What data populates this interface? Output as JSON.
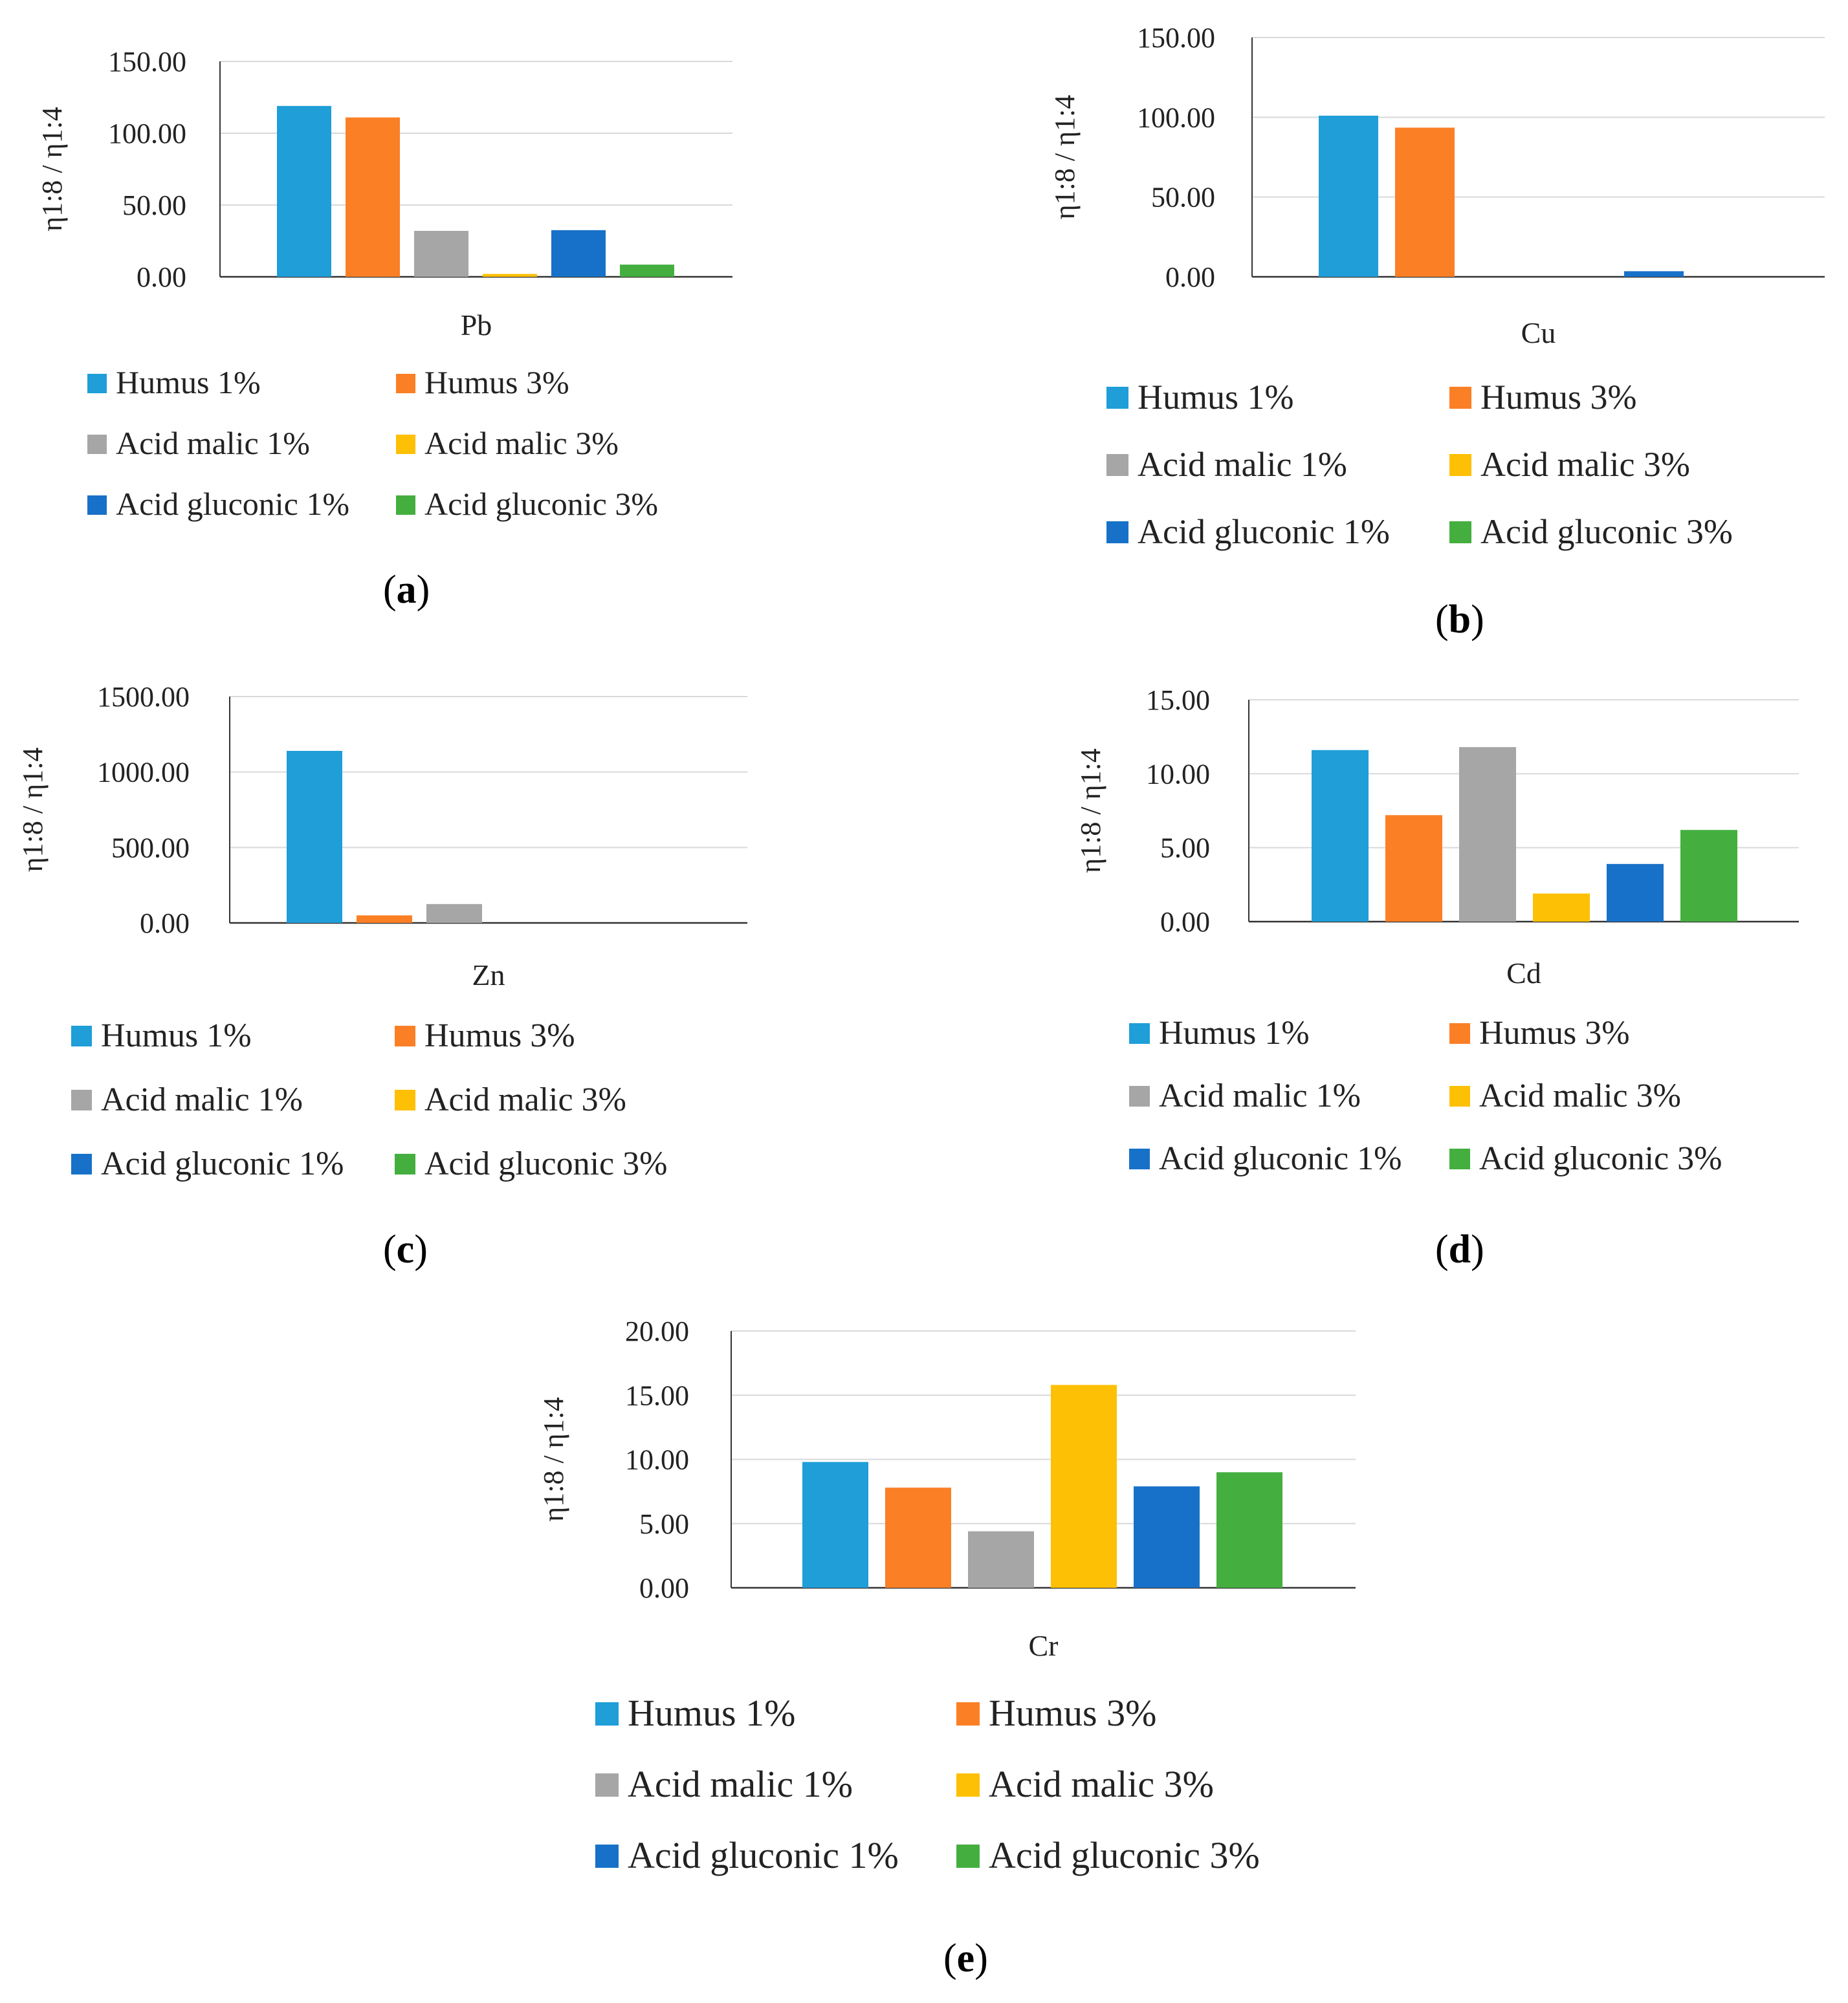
{
  "colors": {
    "humus_1": "#1f9ed8",
    "humus_3": "#fb7f25",
    "malic_1": "#a6a6a6",
    "malic_3": "#fec004",
    "gluconic_1": "#1871c8",
    "gluconic_3": "#44af3f",
    "grid": "#d9d9d9",
    "axis": "#333333"
  },
  "legend_labels": [
    "Humus 1%",
    "Humus 3%",
    "Acid malic 1%",
    "Acid malic 3%",
    "Acid gluconic 1%",
    "Acid gluconic 3%"
  ],
  "chart_data": [
    {
      "type": "bar",
      "panel": "a",
      "title": "",
      "category": "Pb",
      "xlabel": "Pb",
      "ylabel": "η1:8 / η1:4",
      "ylim": [
        0,
        150
      ],
      "yticks": [
        "0.00",
        "50.00",
        "100.00",
        "150.00"
      ],
      "series": [
        {
          "name": "Humus 1%",
          "value": 119
        },
        {
          "name": "Humus 3%",
          "value": 111
        },
        {
          "name": "Acid malic 1%",
          "value": 32
        },
        {
          "name": "Acid malic 3%",
          "value": 2
        },
        {
          "name": "Acid gluconic 1%",
          "value": 32.5
        },
        {
          "name": "Acid gluconic 3%",
          "value": 8.5
        }
      ]
    },
    {
      "type": "bar",
      "panel": "b",
      "title": "",
      "category": "Cu",
      "xlabel": "Cu",
      "ylabel": "η1:8 / η1:4",
      "ylim": [
        0,
        150
      ],
      "yticks": [
        "0.00",
        "50.00",
        "100.00",
        "150.00"
      ],
      "series": [
        {
          "name": "Humus 1%",
          "value": 101
        },
        {
          "name": "Humus 3%",
          "value": 93.5
        },
        {
          "name": "Acid malic 1%",
          "value": 0
        },
        {
          "name": "Acid malic 3%",
          "value": 0
        },
        {
          "name": "Acid gluconic 1%",
          "value": 3.5
        },
        {
          "name": "Acid gluconic 3%",
          "value": 0
        }
      ]
    },
    {
      "type": "bar",
      "panel": "c",
      "title": "",
      "category": "Zn",
      "xlabel": "Zn",
      "ylabel": "η1:8 / η1:4",
      "ylim": [
        0,
        1500
      ],
      "yticks": [
        "0.00",
        "500.00",
        "1000.00",
        "1500.00"
      ],
      "series": [
        {
          "name": "Humus 1%",
          "value": 1140
        },
        {
          "name": "Humus 3%",
          "value": 50
        },
        {
          "name": "Acid malic 1%",
          "value": 125
        },
        {
          "name": "Acid malic 3%",
          "value": 0
        },
        {
          "name": "Acid gluconic 1%",
          "value": 0
        },
        {
          "name": "Acid gluconic 3%",
          "value": 0
        }
      ]
    },
    {
      "type": "bar",
      "panel": "d",
      "title": "",
      "category": "Cd",
      "xlabel": "Cd",
      "ylabel": "η1:8 / η1:4",
      "ylim": [
        0,
        15
      ],
      "yticks": [
        "0.00",
        "5.00",
        "10.00",
        "15.00"
      ],
      "series": [
        {
          "name": "Humus 1%",
          "value": 11.6
        },
        {
          "name": "Humus 3%",
          "value": 7.2
        },
        {
          "name": "Acid malic 1%",
          "value": 11.8
        },
        {
          "name": "Acid malic 3%",
          "value": 1.9
        },
        {
          "name": "Acid gluconic 1%",
          "value": 3.9
        },
        {
          "name": "Acid gluconic 3%",
          "value": 6.2
        }
      ]
    },
    {
      "type": "bar",
      "panel": "e",
      "title": "",
      "category": "Cr",
      "xlabel": "Cr",
      "ylabel": "η1:8 / η1:4",
      "ylim": [
        0,
        20
      ],
      "yticks": [
        "0.00",
        "5.00",
        "10.00",
        "15.00",
        "20.00"
      ],
      "series": [
        {
          "name": "Humus 1%",
          "value": 9.8
        },
        {
          "name": "Humus 3%",
          "value": 7.8
        },
        {
          "name": "Acid malic 1%",
          "value": 4.4
        },
        {
          "name": "Acid malic 3%",
          "value": 15.8
        },
        {
          "name": "Acid gluconic 1%",
          "value": 7.9
        },
        {
          "name": "Acid gluconic 3%",
          "value": 9.0
        }
      ]
    }
  ]
}
